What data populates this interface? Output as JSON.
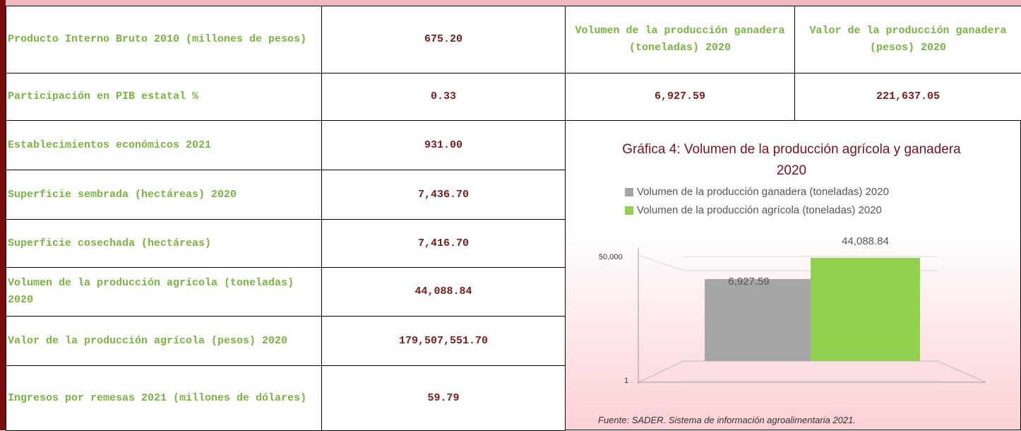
{
  "table": {
    "rows": [
      [
        "Producto Interno Bruto 2010 (millones de pesos)",
        "675.20",
        "Volumen de la producción ganadera (toneladas) 2020",
        "Valor de la producción ganadera (pesos) 2020"
      ],
      [
        "Participación en PIB estatal %",
        "0.33",
        "6,927.59",
        "221,637.05"
      ],
      [
        "Establecimientos económicos 2021",
        "931.00"
      ],
      [
        "Superficie sembrada (hectáreas) 2020",
        "7,436.70"
      ],
      [
        "Superficie cosechada (hectáreas)",
        "7,416.70"
      ],
      [
        "Volumen de la producción agrícola (toneladas) 2020",
        "44,088.84"
      ],
      [
        "Valor de la producción  agrícola (pesos) 2020",
        "179,507,551.70"
      ],
      [
        "Ingresos por remesas 2021 (millones de dólares)",
        "59.79"
      ]
    ]
  },
  "chart": {
    "type": "bar",
    "title": "Gráfica 4: Volumen de la producción agrícola y ganadera 2020",
    "log_scale": true,
    "ylim": [
      1,
      50000
    ],
    "yticks": [
      1,
      {
        "value": 50000,
        "label": "50,000"
      }
    ],
    "series": [
      {
        "name": "Volumen de la producción ganadera (toneladas) 2020",
        "color": "#a6a6a6",
        "values": [
          6927.59
        ],
        "value_labels": [
          "6,927.59"
        ]
      },
      {
        "name": "Volumen de la producción agrícola (toneladas) 2020",
        "color": "#92d050",
        "values": [
          44088.84
        ],
        "value_labels": [
          "44,088.84"
        ]
      }
    ],
    "source": "Fuente: SADER. Sistema de información agroalimentaria 2021."
  }
}
